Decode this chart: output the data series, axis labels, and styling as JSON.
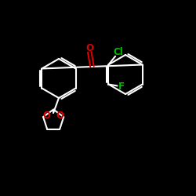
{
  "background_color": "#000000",
  "bond_color": "#ffffff",
  "cl_color": "#00bb00",
  "f_color": "#00bb00",
  "o_color": "#dd0000",
  "bond_width": 1.5,
  "font_size": 8.5,
  "fig_size": [
    2.5,
    2.5
  ],
  "dpi": 100,
  "xlim": [
    0,
    10
  ],
  "ylim": [
    0,
    10
  ]
}
